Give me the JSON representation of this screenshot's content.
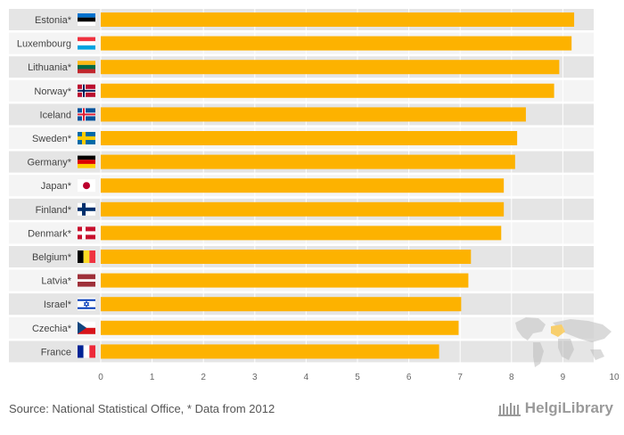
{
  "chart_data": {
    "type": "bar",
    "orientation": "horizontal",
    "title": "",
    "xlabel": "",
    "ylabel": "",
    "xlim": [
      0,
      10
    ],
    "ticks": [
      0,
      1,
      2,
      3,
      4,
      5,
      6,
      7,
      8,
      9,
      10
    ],
    "grid": true,
    "categories": [
      "Estonia*",
      "Luxembourg",
      "Lithuania*",
      "Norway*",
      "Iceland",
      "Sweden*",
      "Germany*",
      "Japan*",
      "Finland*",
      "Denmark*",
      "Belgium*",
      "Latvia*",
      "Israel*",
      "Czechia*",
      "France"
    ],
    "values": [
      9.22,
      9.17,
      8.93,
      8.83,
      8.28,
      8.11,
      8.07,
      7.85,
      7.85,
      7.8,
      7.21,
      7.16,
      7.02,
      6.97,
      6.59
    ],
    "bar_color": "#FDB200",
    "row_band_color": "#E5E5E5"
  },
  "footer": {
    "source": "Source: National Statistical Office, * Data from 2012",
    "brand": "HelgiLibrary"
  },
  "flags": [
    "Estonia",
    "Luxembourg",
    "Lithuania",
    "Norway",
    "Iceland",
    "Sweden",
    "Germany",
    "Japan",
    "Finland",
    "Denmark",
    "Belgium",
    "Latvia",
    "Israel",
    "Czechia",
    "France"
  ]
}
